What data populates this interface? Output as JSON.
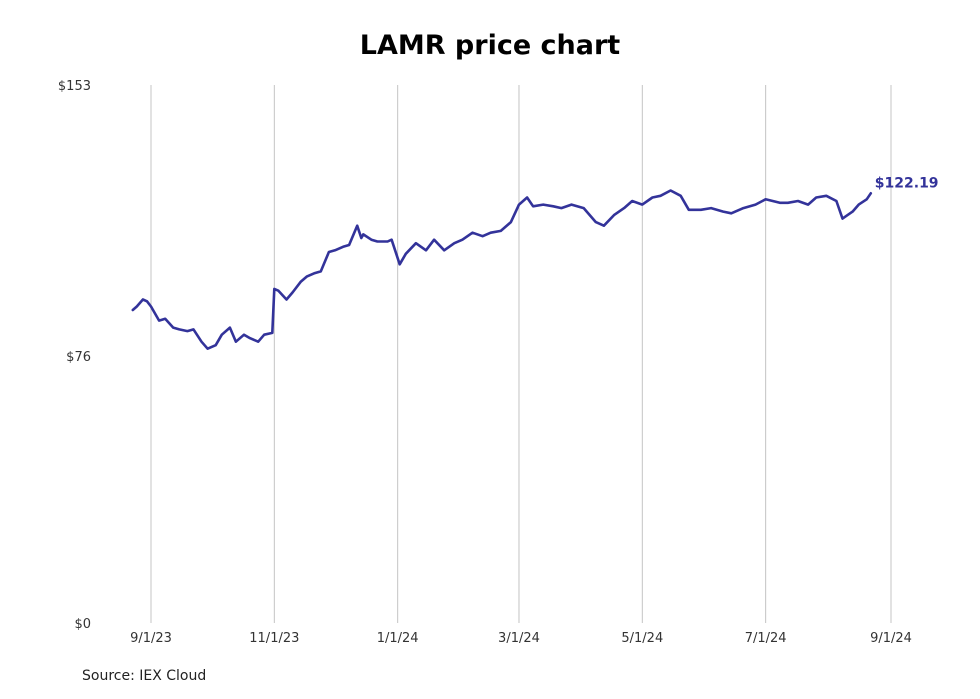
{
  "chart_data": {
    "type": "line",
    "title": "LAMR price chart",
    "source": "Source: IEX Cloud",
    "xlabel": "",
    "ylabel": "",
    "ylim": [
      0,
      153
    ],
    "y_ticks": [
      {
        "value": 0,
        "label": "$0"
      },
      {
        "value": 76,
        "label": "$76"
      },
      {
        "value": 153,
        "label": "$153"
      }
    ],
    "x_ticks": [
      {
        "date": "2023-09-01",
        "label": "9/1/23"
      },
      {
        "date": "2023-11-01",
        "label": "11/1/23"
      },
      {
        "date": "2024-01-01",
        "label": "1/1/24"
      },
      {
        "date": "2024-03-01",
        "label": "3/1/24"
      },
      {
        "date": "2024-05-01",
        "label": "5/1/24"
      },
      {
        "date": "2024-07-01",
        "label": "7/1/24"
      },
      {
        "date": "2024-09-01",
        "label": "9/1/24"
      }
    ],
    "grid": "vertical",
    "line_color": "#33339a",
    "last_label": "$122.19",
    "series": [
      {
        "x": [
          "2023-08-23",
          "2023-08-25",
          "2023-08-28",
          "2023-08-30",
          "2023-09-01",
          "2023-09-05",
          "2023-09-08",
          "2023-09-12",
          "2023-09-15",
          "2023-09-19",
          "2023-09-22",
          "2023-09-26",
          "2023-09-29",
          "2023-10-03",
          "2023-10-06",
          "2023-10-10",
          "2023-10-13",
          "2023-10-17",
          "2023-10-20",
          "2023-10-24",
          "2023-10-27",
          "2023-10-31",
          "2023-11-01",
          "2023-11-03",
          "2023-11-07",
          "2023-11-10",
          "2023-11-14",
          "2023-11-17",
          "2023-11-21",
          "2023-11-24",
          "2023-11-28",
          "2023-12-01",
          "2023-12-05",
          "2023-12-08",
          "2023-12-12",
          "2023-12-14",
          "2023-12-15",
          "2023-12-19",
          "2023-12-22",
          "2023-12-27",
          "2023-12-29",
          "2024-01-02",
          "2024-01-05",
          "2024-01-10",
          "2024-01-15",
          "2024-01-19",
          "2024-01-24",
          "2024-01-29",
          "2024-02-02",
          "2024-02-07",
          "2024-02-12",
          "2024-02-16",
          "2024-02-21",
          "2024-02-26",
          "2024-03-01",
          "2024-03-05",
          "2024-03-08",
          "2024-03-13",
          "2024-03-18",
          "2024-03-22",
          "2024-03-27",
          "2024-04-02",
          "2024-04-08",
          "2024-04-12",
          "2024-04-17",
          "2024-04-22",
          "2024-04-26",
          "2024-05-01",
          "2024-05-06",
          "2024-05-10",
          "2024-05-15",
          "2024-05-20",
          "2024-05-24",
          "2024-05-30",
          "2024-06-04",
          "2024-06-10",
          "2024-06-14",
          "2024-06-20",
          "2024-06-26",
          "2024-07-01",
          "2024-07-08",
          "2024-07-12",
          "2024-07-17",
          "2024-07-22",
          "2024-07-26",
          "2024-07-31",
          "2024-08-05",
          "2024-08-08",
          "2024-08-13",
          "2024-08-16",
          "2024-08-20",
          "2024-08-22"
        ],
        "y": [
          89,
          90,
          92,
          91.5,
          90,
          86,
          86.5,
          84,
          83.5,
          83,
          83.5,
          80,
          78,
          79,
          82,
          84,
          80,
          82,
          81,
          80,
          82,
          82.5,
          95,
          94.5,
          92,
          94,
          97,
          98.5,
          99.5,
          100,
          105.5,
          106,
          107,
          107.5,
          113,
          109.5,
          110.5,
          109,
          108.5,
          108.5,
          109,
          102,
          105,
          108,
          106,
          109,
          106,
          108,
          109,
          111,
          110,
          111,
          111.5,
          114,
          119,
          121,
          118.5,
          119,
          118.5,
          118,
          119,
          118,
          114,
          113,
          116,
          118,
          120,
          119,
          121,
          121.5,
          123,
          121.5,
          117.5,
          117.5,
          118,
          117,
          116.5,
          118,
          119,
          120.5,
          119.5,
          119.5,
          120,
          119,
          121,
          121.5,
          120,
          115,
          117,
          119,
          120.5,
          122.19
        ]
      }
    ]
  }
}
